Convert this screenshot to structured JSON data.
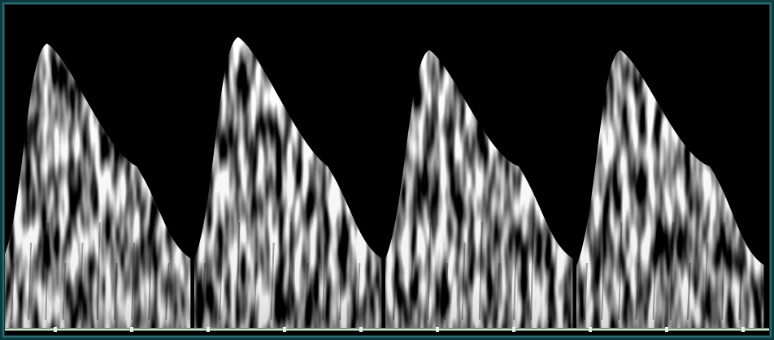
{
  "image": {
    "kind": "doppler-spectral-waveform",
    "background_color": "#000000",
    "signal_color": "#ffffff",
    "frame_color": "#0d3a3e",
    "baseline_color": "#cfe6cf",
    "cycles": [
      {
        "peak_velocity": 0.88,
        "end_velocity": 0.24
      },
      {
        "peak_velocity": 0.9,
        "end_velocity": 0.24
      },
      {
        "peak_velocity": 0.86,
        "end_velocity": 0.24
      },
      {
        "peak_velocity": 0.86,
        "end_velocity": 0.22
      }
    ]
  }
}
